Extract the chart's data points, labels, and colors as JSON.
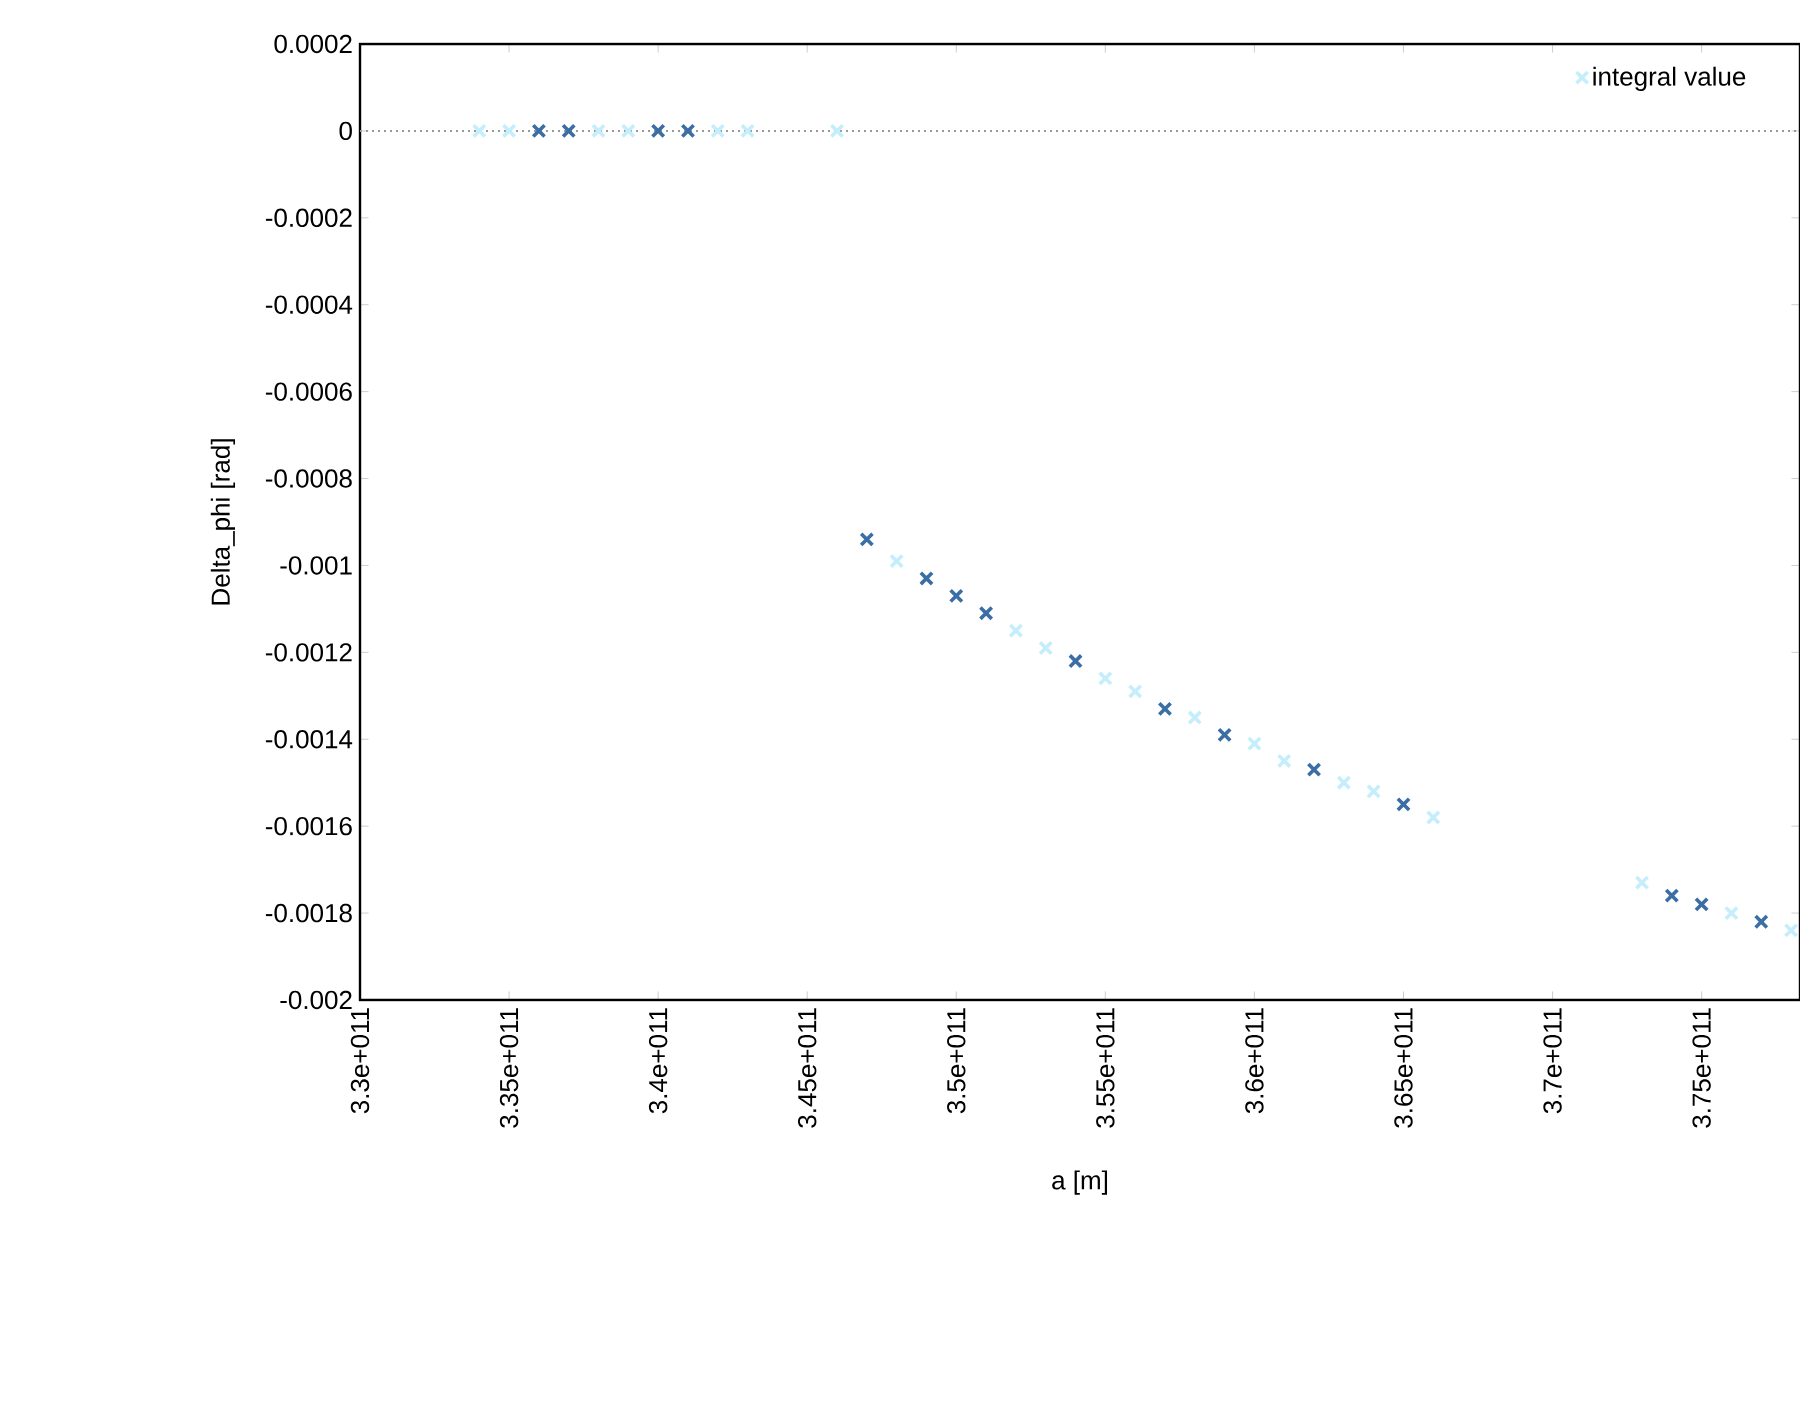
{
  "chart_data": {
    "type": "scatter",
    "xlabel": "a [m]",
    "ylabel": "Delta_phi [rad]",
    "marker": "cross",
    "legend": "top right",
    "grid": false,
    "series": [
      {
        "name": "integral value",
        "color": "#c4eefc",
        "x": [
          334000000000.0,
          335000000000.0,
          338000000000.0,
          339000000000.0,
          342000000000.0,
          343000000000.0,
          346000000000.0,
          348000000000.0,
          352000000000.0,
          353000000000.0,
          355000000000.0,
          356000000000.0,
          358000000000.0,
          360000000000.0,
          361000000000.0,
          363000000000.0,
          364000000000.0,
          366000000000.0,
          373000000000.0,
          376000000000.0,
          378000000000.0
        ],
        "values": [
          0,
          0,
          0,
          0,
          0,
          0,
          0,
          -0.00099,
          -0.00115,
          -0.00119,
          -0.00126,
          -0.00129,
          -0.00135,
          -0.00141,
          -0.00145,
          -0.0015,
          -0.00152,
          -0.00158,
          -0.00173,
          -0.0018,
          -0.00184
        ]
      },
      {
        "color": "#3a6ea5",
        "x": [
          336000000000.0,
          337000000000.0,
          340000000000.0,
          341000000000.0,
          347000000000.0,
          349000000000.0,
          350000000000.0,
          351000000000.0,
          354000000000.0,
          357000000000.0,
          359000000000.0,
          362000000000.0,
          365000000000.0,
          374000000000.0,
          375000000000.0,
          377000000000.0
        ],
        "values": [
          0,
          0,
          0,
          0,
          -0.00094,
          -0.00103,
          -0.00107,
          -0.00111,
          -0.00122,
          -0.00133,
          -0.00139,
          -0.00147,
          -0.00155,
          -0.00176,
          -0.00178,
          -0.00182
        ]
      }
    ],
    "xlim": [
      330000000000.0,
      378300000000.0
    ],
    "ylim": [
      -0.002,
      0.0002
    ],
    "xticks": [
      {
        "value": 330000000000.0,
        "label": "3.3e+011"
      },
      {
        "value": 335000000000.0,
        "label": "3.35e+011"
      },
      {
        "value": 340000000000.0,
        "label": "3.4e+011"
      },
      {
        "value": 345000000000.0,
        "label": "3.45e+011"
      },
      {
        "value": 350000000000.0,
        "label": "3.5e+011"
      },
      {
        "value": 355000000000.0,
        "label": "3.55e+011"
      },
      {
        "value": 360000000000.0,
        "label": "3.6e+011"
      },
      {
        "value": 365000000000.0,
        "label": "3.65e+011"
      },
      {
        "value": 370000000000.0,
        "label": "3.7e+011"
      },
      {
        "value": 375000000000.0,
        "label": "3.75e+011"
      }
    ],
    "yticks": [
      0.0002,
      0,
      -0.0002,
      -0.0004,
      -0.0006,
      -0.0008,
      -0.001,
      -0.0012,
      -0.0014,
      -0.0016,
      -0.0018,
      -0.002
    ],
    "ref_lines": [
      {
        "axis": "y",
        "value": 0,
        "color": "#999999",
        "line_style": "dotted"
      }
    ]
  }
}
